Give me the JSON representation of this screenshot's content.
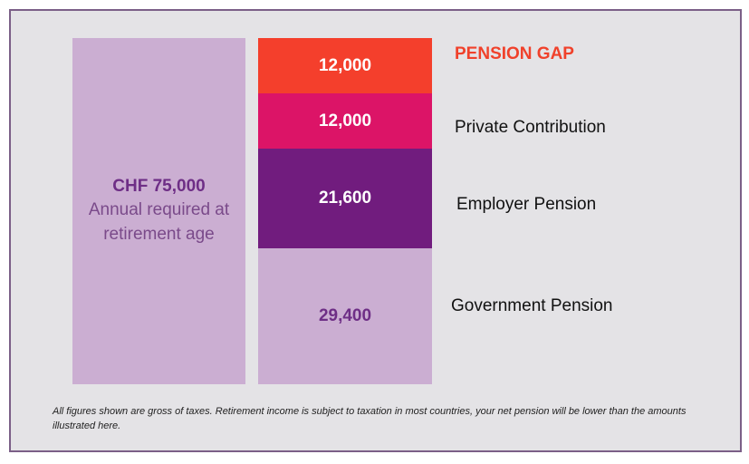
{
  "chart_data": {
    "type": "bar",
    "stacked": true,
    "total": {
      "amount": "CHF 75,000",
      "description": "Annual required at retirement age",
      "value": 75000
    },
    "segments": [
      {
        "label": "PENSION GAP",
        "value": 12000,
        "display": "12,000",
        "color": "#f43f2c",
        "text_color": "#ffffff",
        "highlight": true
      },
      {
        "label": "Private Contribution",
        "value": 12000,
        "display": "12,000",
        "color": "#dc1467",
        "text_color": "#ffffff",
        "highlight": false
      },
      {
        "label": "Employer Pension",
        "value": 21600,
        "display": "21,600",
        "color": "#711c7e",
        "text_color": "#ffffff",
        "highlight": false
      },
      {
        "label": "Government Pension",
        "value": 29400,
        "display": "29,400",
        "color": "#cbaed2",
        "text_color": "#6e2e86",
        "highlight": false
      }
    ]
  },
  "footnote": "All figures shown are gross of taxes. Retirement income is subject to taxation in most countries, your net pension will be lower than the amounts illustrated here."
}
